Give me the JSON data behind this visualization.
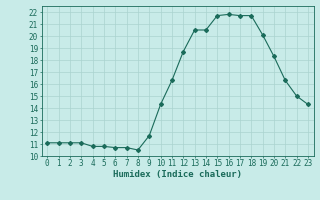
{
  "x": [
    0,
    1,
    2,
    3,
    4,
    5,
    6,
    7,
    8,
    9,
    10,
    11,
    12,
    13,
    14,
    15,
    16,
    17,
    18,
    19,
    20,
    21,
    22,
    23
  ],
  "y": [
    11.1,
    11.1,
    11.1,
    11.1,
    10.8,
    10.8,
    10.7,
    10.7,
    10.5,
    11.7,
    14.3,
    16.3,
    18.7,
    20.5,
    20.5,
    21.7,
    21.8,
    21.7,
    21.7,
    20.1,
    18.3,
    16.3,
    15.0,
    14.3
  ],
  "line_color": "#1a6b5a",
  "marker": "D",
  "marker_size": 2,
  "bg_color": "#c8ebe8",
  "grid_color": "#aad4cf",
  "xlabel": "Humidex (Indice chaleur)",
  "xlim": [
    -0.5,
    23.5
  ],
  "ylim": [
    10,
    22.5
  ],
  "yticks": [
    10,
    11,
    12,
    13,
    14,
    15,
    16,
    17,
    18,
    19,
    20,
    21,
    22
  ],
  "xticks": [
    0,
    1,
    2,
    3,
    4,
    5,
    6,
    7,
    8,
    9,
    10,
    11,
    12,
    13,
    14,
    15,
    16,
    17,
    18,
    19,
    20,
    21,
    22,
    23
  ],
  "tick_label_fontsize": 5.5,
  "xlabel_fontsize": 6.5
}
